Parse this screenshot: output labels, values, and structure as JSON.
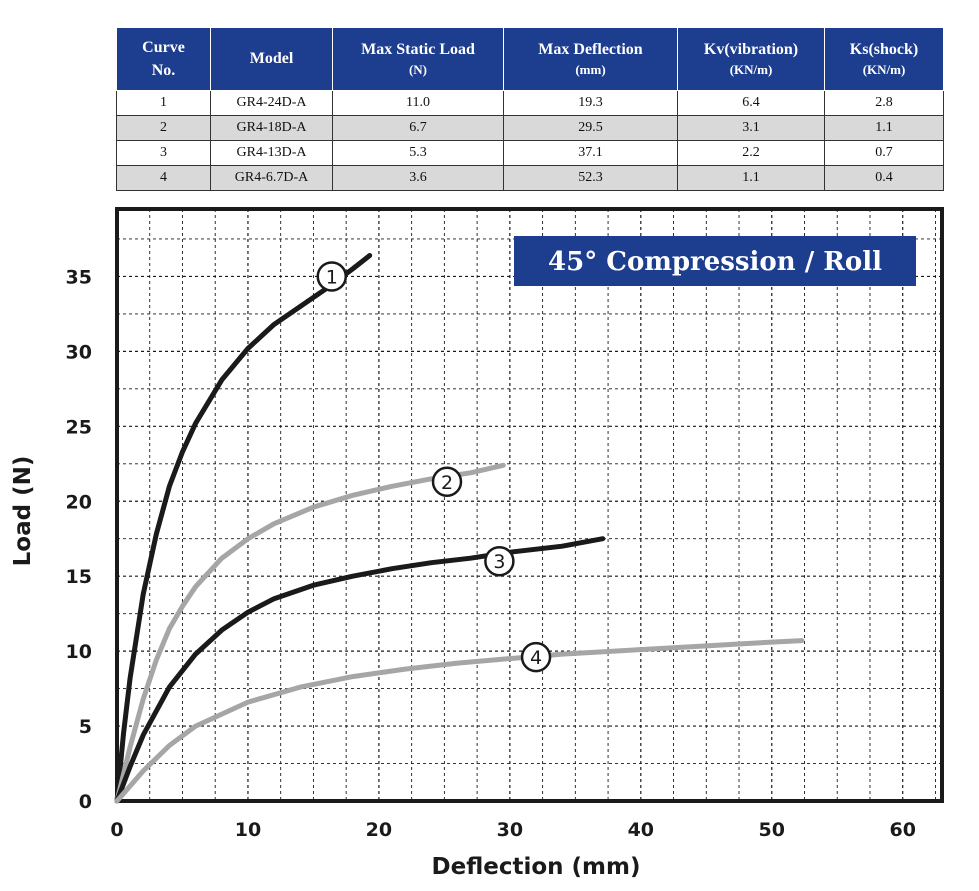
{
  "table": {
    "headers": [
      {
        "label": "Curve",
        "label2": "No.",
        "unit": ""
      },
      {
        "label": "Model",
        "label2": "",
        "unit": ""
      },
      {
        "label": "Max Static Load",
        "label2": "",
        "unit": "(N)"
      },
      {
        "label": "Max Deflection",
        "label2": "",
        "unit": "(mm)"
      },
      {
        "label": "Kv(vibration)",
        "label2": "",
        "unit": "(KN/m)"
      },
      {
        "label": "Ks(shock)",
        "label2": "",
        "unit": "(KN/m)"
      }
    ],
    "rows": [
      [
        "1",
        "GR4-24D-A",
        "11.0",
        "19.3",
        "6.4",
        "2.8"
      ],
      [
        "2",
        "GR4-18D-A",
        "6.7",
        "29.5",
        "3.1",
        "1.1"
      ],
      [
        "3",
        "GR4-13D-A",
        "5.3",
        "37.1",
        "2.2",
        "0.7"
      ],
      [
        "4",
        "GR4-6.7D-A",
        "3.6",
        "52.3",
        "1.1",
        "0.4"
      ]
    ]
  },
  "chart_data": {
    "type": "line",
    "title": "45° Compression / Roll",
    "xlabel": "Deflection (mm)",
    "ylabel": "Load (N)",
    "xlim": [
      0,
      63
    ],
    "ylim": [
      0,
      39.5
    ],
    "xticks": [
      0,
      10,
      20,
      30,
      40,
      50,
      60
    ],
    "yticks": [
      0,
      5,
      10,
      15,
      20,
      25,
      30,
      35
    ],
    "grid": true,
    "colors": {
      "dark": "#1a1a1a",
      "light": "#a6a6a6",
      "title_bg": "#1d3d8f",
      "title_text": "#ffffff"
    },
    "series": [
      {
        "name": "1",
        "color": "dark",
        "label_at": [
          16.4,
          35.0
        ],
        "points": [
          [
            0,
            0
          ],
          [
            0.5,
            4.5
          ],
          [
            1,
            8.2
          ],
          [
            2,
            13.8
          ],
          [
            3,
            17.8
          ],
          [
            4,
            21.0
          ],
          [
            5,
            23.3
          ],
          [
            6,
            25.2
          ],
          [
            8,
            28.1
          ],
          [
            10,
            30.2
          ],
          [
            12,
            31.8
          ],
          [
            14,
            33.0
          ],
          [
            16,
            34.2
          ],
          [
            18,
            35.5
          ],
          [
            19.3,
            36.4
          ]
        ]
      },
      {
        "name": "2",
        "color": "light",
        "label_at": [
          25.2,
          21.3
        ],
        "points": [
          [
            0,
            0
          ],
          [
            1,
            3.6
          ],
          [
            2,
            6.8
          ],
          [
            3,
            9.4
          ],
          [
            4,
            11.5
          ],
          [
            5,
            13.0
          ],
          [
            6,
            14.3
          ],
          [
            8,
            16.2
          ],
          [
            10,
            17.5
          ],
          [
            12,
            18.5
          ],
          [
            15,
            19.6
          ],
          [
            18,
            20.4
          ],
          [
            21,
            21.0
          ],
          [
            24,
            21.5
          ],
          [
            27,
            21.9
          ],
          [
            29.5,
            22.4
          ]
        ]
      },
      {
        "name": "3",
        "color": "dark",
        "label_at": [
          29.2,
          16.0
        ],
        "points": [
          [
            0,
            0
          ],
          [
            1,
            2.3
          ],
          [
            2,
            4.4
          ],
          [
            4,
            7.6
          ],
          [
            6,
            9.8
          ],
          [
            8,
            11.4
          ],
          [
            10,
            12.6
          ],
          [
            12,
            13.5
          ],
          [
            15,
            14.4
          ],
          [
            18,
            15.0
          ],
          [
            21,
            15.5
          ],
          [
            24,
            15.9
          ],
          [
            27,
            16.2
          ],
          [
            30,
            16.6
          ],
          [
            34,
            17.0
          ],
          [
            37.1,
            17.5
          ]
        ]
      },
      {
        "name": "4",
        "color": "light",
        "label_at": [
          32.0,
          9.6
        ],
        "points": [
          [
            0,
            0
          ],
          [
            2,
            2.0
          ],
          [
            4,
            3.7
          ],
          [
            6,
            5.0
          ],
          [
            8,
            5.8
          ],
          [
            10,
            6.6
          ],
          [
            14,
            7.6
          ],
          [
            18,
            8.3
          ],
          [
            22,
            8.8
          ],
          [
            26,
            9.2
          ],
          [
            30,
            9.5
          ],
          [
            34,
            9.8
          ],
          [
            38,
            10.0
          ],
          [
            42,
            10.2
          ],
          [
            46,
            10.4
          ],
          [
            50,
            10.6
          ],
          [
            52.3,
            10.7
          ]
        ]
      }
    ]
  }
}
